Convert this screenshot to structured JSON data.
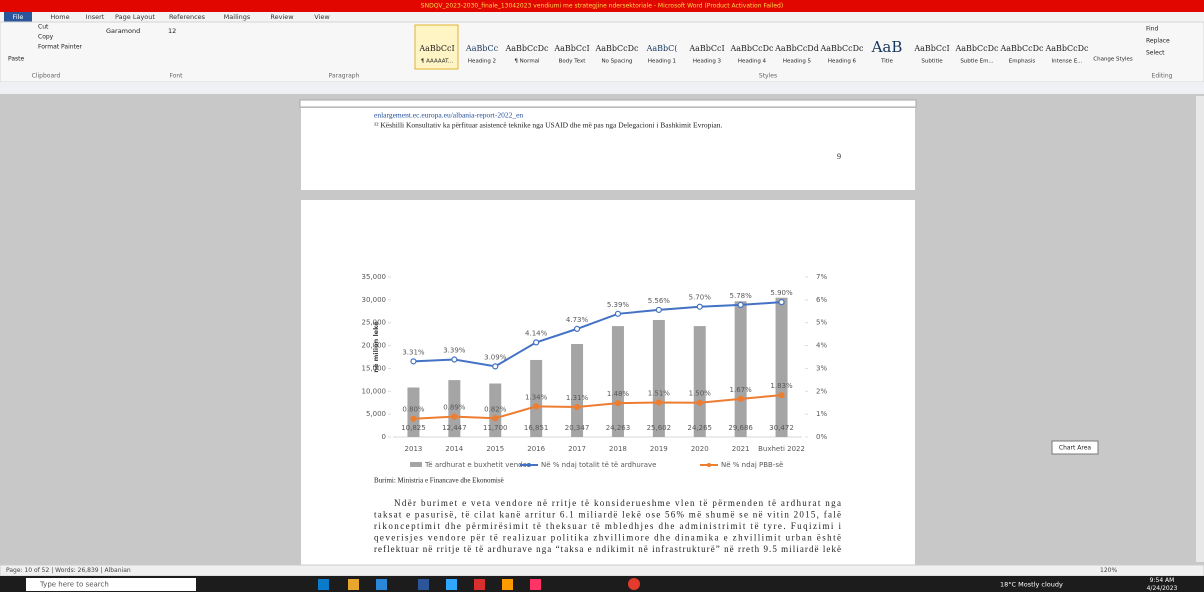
{
  "window": {
    "title": "SNDQV_2023-2030_finale_13042023 vendiumi me strategjine ndersektoriale - Microsoft Word (Product Activation Failed)"
  },
  "ribbon": {
    "tabs": [
      "File",
      "Home",
      "Insert",
      "Page Layout",
      "References",
      "Mailings",
      "Review",
      "View"
    ],
    "clipboard": {
      "paste": "Paste",
      "cut": "Cut",
      "copy": "Copy",
      "format_painter": "Format Painter"
    },
    "font": {
      "name": "Garamond",
      "size": "12"
    },
    "styles": [
      {
        "preview": "AaBbCcI",
        "name": "¶ AAAAAT..."
      },
      {
        "preview": "AaBbCc",
        "name": "Heading 2"
      },
      {
        "preview": "AaBbCcDc",
        "name": "¶ Normal"
      },
      {
        "preview": "AaBbCcI",
        "name": "Body Text"
      },
      {
        "preview": "AaBbCcDc",
        "name": "No Spacing"
      },
      {
        "preview": "AaBbC(",
        "name": "Heading 1"
      },
      {
        "preview": "AaBbCcI",
        "name": "Heading 3"
      },
      {
        "preview": "AaBbCcDc",
        "name": "Heading 4"
      },
      {
        "preview": "AaBbCcDd",
        "name": "Heading 5"
      },
      {
        "preview": "AaBbCcDc",
        "name": "Heading 6"
      },
      {
        "preview": "AaB",
        "name": "Title"
      },
      {
        "preview": "AaBbCcI",
        "name": "Subtitle"
      },
      {
        "preview": "AaBbCcDc",
        "name": "Subtle Em..."
      },
      {
        "preview": "AaBbCcDc",
        "name": "Emphasis"
      },
      {
        "preview": "AaBbCcDc",
        "name": "Intense E..."
      }
    ],
    "change_styles": "Change Styles",
    "editing": {
      "find": "Find",
      "replace": "Replace",
      "select": "Select"
    },
    "groups": [
      "Clipboard",
      "Font",
      "Paragraph",
      "Styles",
      "Editing"
    ]
  },
  "document": {
    "page1": {
      "link": "enlargement.ec.europa.eu/albania-report-2022_en",
      "footnote": "¹² Këshilli Konsultativ ka përfituar asistencë teknike nga USAID dhe më pas nga Delegacioni i Bashkimit Evropian.",
      "page_number": "9"
    },
    "chart_data": {
      "type": "bar_line",
      "y_label": "në milion lekë",
      "categories": [
        "2013",
        "2014",
        "2015",
        "2016",
        "2017",
        "2018",
        "2019",
        "2020",
        "2021",
        "Buxheti 2022"
      ],
      "series": [
        {
          "name": "Të ardhurat e buxhetit vendor",
          "type": "bar",
          "color": "#a5a5a5",
          "values": [
            10825,
            12447,
            11700,
            16851,
            20347,
            24263,
            25602,
            24265,
            29686,
            30472
          ],
          "value_labels": [
            "10,825",
            "12,447",
            "11,700",
            "16,851",
            "20,347",
            "24,263",
            "25,602",
            "24,265",
            "29,686",
            "30,472"
          ]
        },
        {
          "name": "Në % ndaj totalit të të ardhurave",
          "type": "line",
          "axis": "y2",
          "color": "#4472c4",
          "values": [
            3.31,
            3.39,
            3.09,
            4.14,
            4.73,
            5.39,
            5.56,
            5.7,
            5.78,
            5.9
          ],
          "value_labels": [
            "3.31%",
            "3.39%",
            "3.09%",
            "4.14%",
            "4.73%",
            "5.39%",
            "5.56%",
            "5.70%",
            "5.78%",
            "5.90%"
          ]
        },
        {
          "name": "Në % ndaj PBB-së",
          "type": "line",
          "axis": "y2",
          "color": "#ed7d31",
          "values": [
            0.8,
            0.89,
            0.82,
            1.34,
            1.31,
            1.48,
            1.51,
            1.5,
            1.67,
            1.83
          ],
          "value_labels": [
            "0.80%",
            "0.89%",
            "0.82%",
            "1.34%",
            "1.31%",
            "1.48%",
            "1.51%",
            "1.50%",
            "1.67%",
            "1.83%"
          ]
        }
      ],
      "ylim": [
        0,
        35000
      ],
      "yticks": [
        0,
        {
          "value": 5000,
          "label": "5,000"
        },
        {
          "value": 10000,
          "label": "10,000"
        },
        {
          "value": 15000,
          "label": "15,000"
        },
        {
          "value": 20000,
          "label": "20,000"
        },
        {
          "value": 25000,
          "label": "25,000"
        },
        {
          "value": 30000,
          "label": "30,000"
        },
        {
          "value": 35000,
          "label": "35,000"
        }
      ],
      "y2lim": [
        0,
        7
      ],
      "y2ticks": [
        {
          "value": 0,
          "label": "0%"
        },
        {
          "value": 1,
          "label": "1%"
        },
        {
          "value": 2,
          "label": "2%"
        },
        {
          "value": 3,
          "label": "3%"
        },
        {
          "value": 4,
          "label": "4%"
        },
        {
          "value": 5,
          "label": "5%"
        },
        {
          "value": 6,
          "label": "6%"
        },
        {
          "value": 7,
          "label": "7%"
        }
      ]
    },
    "source": "Burimi: Ministria e Financave dhe Ekonomisë",
    "paragraph": [
      "Ndër burimet e veta vendore në rritje të konsiderueshme vlen të përmenden të ardhurat nga",
      "taksat e pasurisë, të cilat kanë arritur 6.1 miliardë lekë ose 56% më shumë se në vitin 2015, falë",
      "rikonceptimit dhe përmirësimit të theksuar të mbledhjes dhe administrimit të tyre. Fuqizimi i",
      "qeverisjes vendore për të realizuar politika zhvillimore dhe dinamika e zhvillimit urban është",
      "reflektuar në rritje të të ardhurave nga “taksa e ndikimit në infrastrukturë” në rreth 9.5 miliardë lekë"
    ]
  },
  "tooltip": "Chart Area",
  "status_bar": {
    "info": "Page: 10 of 52 | Words: 26,839 | Albanian",
    "zoom": "120%"
  },
  "taskbar": {
    "search": "Type here to search",
    "weather": "18°C Mostly cloudy",
    "time": "9:54 AM",
    "date": "4/24/2023"
  }
}
